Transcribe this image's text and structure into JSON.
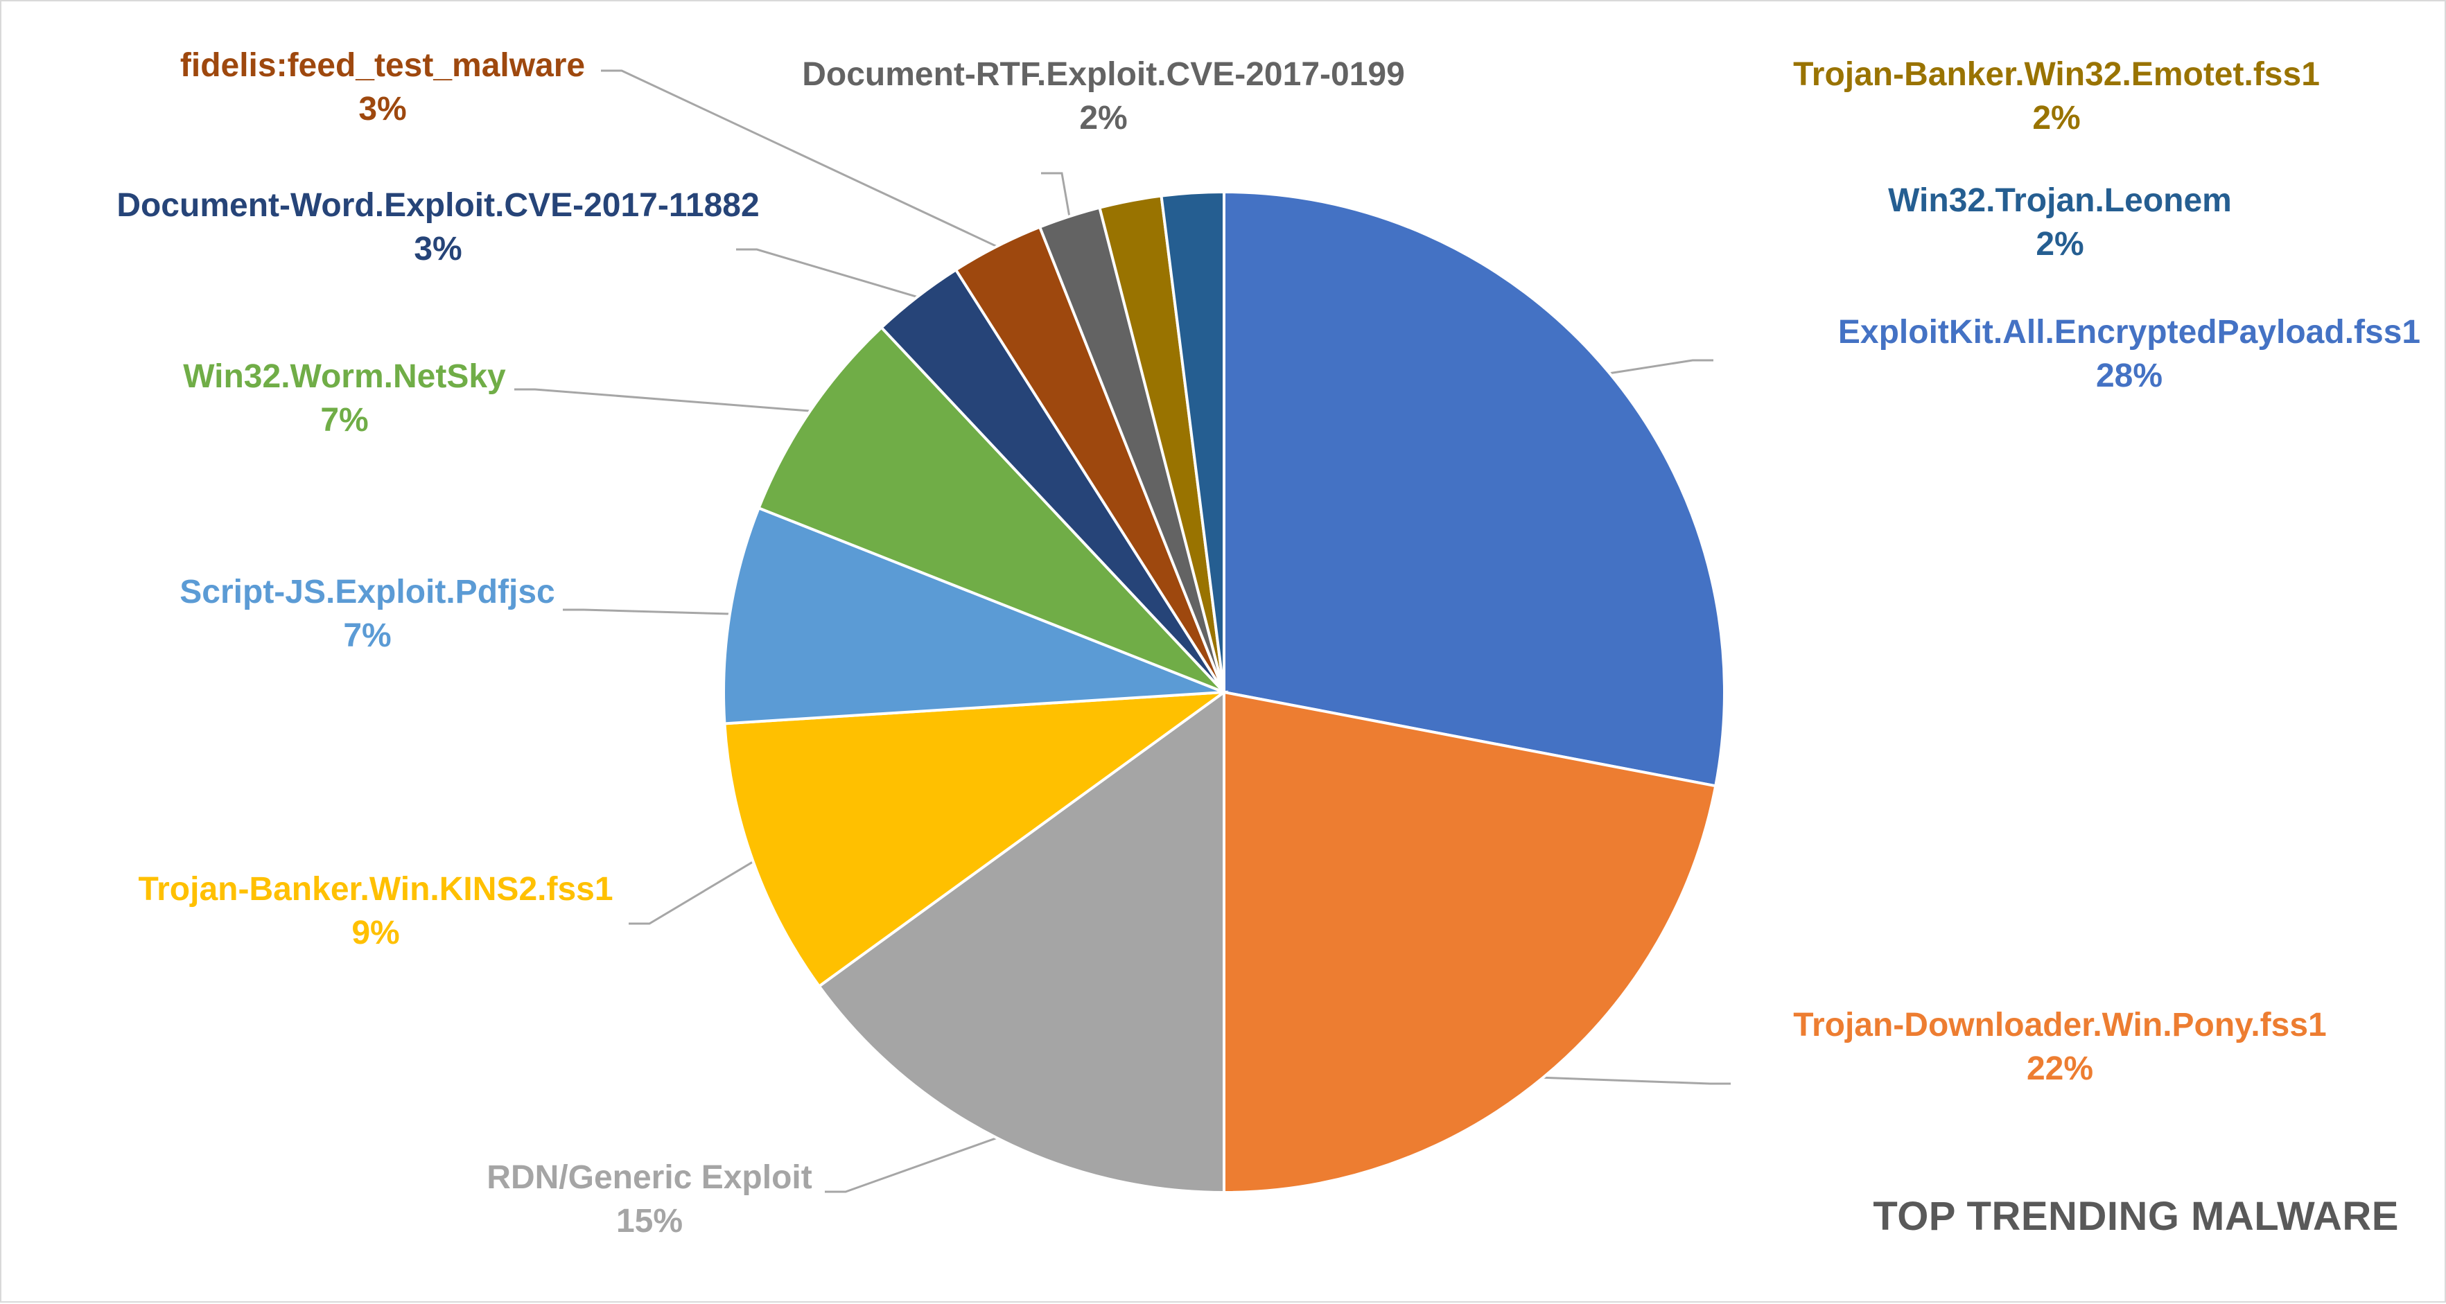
{
  "chart_data": {
    "type": "pie",
    "title": "TOP TRENDING MALWARE",
    "start_angle_deg": 0,
    "direction": "clockwise",
    "slices": [
      {
        "label": "ExploitKit.All.EncryptedPayload.fss1",
        "value": 28,
        "display": "28%",
        "color": "#4472C4"
      },
      {
        "label": "Trojan-Downloader.Win.Pony.fss1",
        "value": 22,
        "display": "22%",
        "color": "#ED7D31"
      },
      {
        "label": "RDN/Generic Exploit",
        "value": 15,
        "display": "15%",
        "color": "#A5A5A5"
      },
      {
        "label": "Trojan-Banker.Win.KINS2.fss1",
        "value": 9,
        "display": "9%",
        "color": "#FFC000"
      },
      {
        "label": "Script-JS.Exploit.Pdfjsc",
        "value": 7,
        "display": "7%",
        "color": "#5B9BD5"
      },
      {
        "label": "Win32.Worm.NetSky",
        "value": 7,
        "display": "7%",
        "color": "#70AD47"
      },
      {
        "label": "Document-Word.Exploit.CVE-2017-11882",
        "value": 3,
        "display": "3%",
        "color": "#264478"
      },
      {
        "label": "fidelis:feed_test_malware",
        "value": 3,
        "display": "3%",
        "color": "#9E480E"
      },
      {
        "label": "Document-RTF.Exploit.CVE-2017-0199",
        "value": 2,
        "display": "2%",
        "color": "#636363"
      },
      {
        "label": "Trojan-Banker.Win32.Emotet.fss1",
        "value": 2,
        "display": "2%",
        "color": "#997300"
      },
      {
        "label": "Win32.Trojan.Leonem",
        "value": 2,
        "display": "2%",
        "color": "#255E91"
      }
    ],
    "legend": "none",
    "data_labels": "outside-with-leader-lines"
  }
}
